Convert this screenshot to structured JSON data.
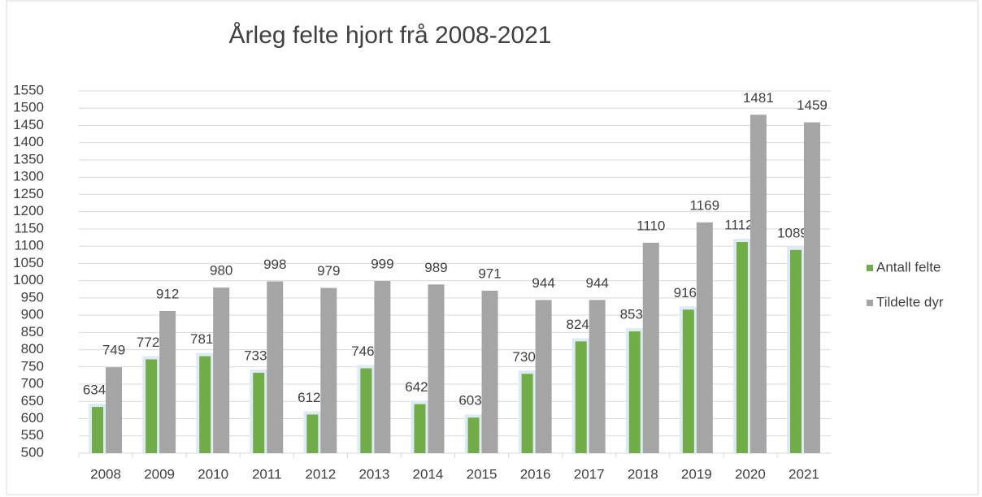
{
  "chart_data": {
    "type": "bar",
    "title": "Årleg felte hjort frå 2008-2021",
    "categories": [
      "2008",
      "2009",
      "2010",
      "2011",
      "2012",
      "2013",
      "2014",
      "2015",
      "2016",
      "2017",
      "2018",
      "2019",
      "2020",
      "2021"
    ],
    "series": [
      {
        "name": "Antall felte",
        "color": "#70ad47",
        "values": [
          634,
          772,
          781,
          733,
          612,
          746,
          642,
          603,
          730,
          824,
          853,
          916,
          1112,
          1089
        ]
      },
      {
        "name": "Tildelte dyr",
        "color": "#a5a5a5",
        "values": [
          749,
          912,
          980,
          998,
          979,
          999,
          989,
          971,
          944,
          944,
          1110,
          1169,
          1481,
          1459
        ]
      }
    ],
    "ylim": [
      500,
      1550
    ],
    "yticks": [
      500,
      550,
      600,
      650,
      700,
      750,
      800,
      850,
      900,
      950,
      1000,
      1050,
      1100,
      1150,
      1200,
      1250,
      1300,
      1350,
      1400,
      1450,
      1500,
      1550
    ],
    "grid": true,
    "legend": "right"
  }
}
